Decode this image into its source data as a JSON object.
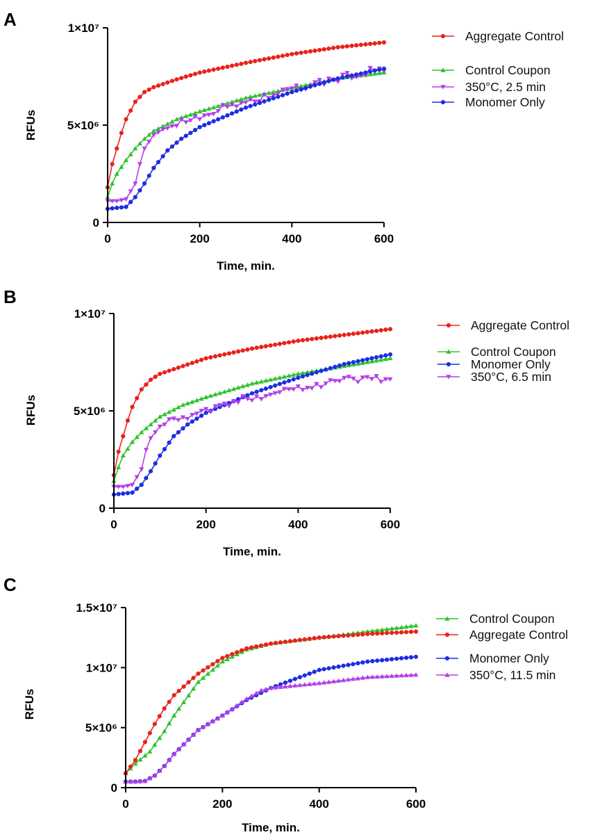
{
  "chart_data": [
    {
      "panel": "A",
      "type": "line",
      "xlabel": "Time, min.",
      "ylabel": "RFUs",
      "xlim": [
        0,
        600
      ],
      "ylim": [
        0,
        10000000
      ],
      "xticks": [
        0,
        200,
        400,
        600
      ],
      "xtick_labels": [
        "0",
        "200",
        "400",
        "600"
      ],
      "yticks": [
        0,
        5000000,
        10000000
      ],
      "ytick_labels": [
        "0",
        "5×10⁶",
        "1×10⁷"
      ],
      "interval_min": 10,
      "series": [
        {
          "name": "Aggregate Control",
          "color": "#e8231c",
          "marker": "circle",
          "anchors": [
            [
              0,
              1800000
            ],
            [
              10,
              3000000
            ],
            [
              20,
              3800000
            ],
            [
              30,
              4600000
            ],
            [
              40,
              5300000
            ],
            [
              60,
              6200000
            ],
            [
              80,
              6700000
            ],
            [
              100,
              6950000
            ],
            [
              150,
              7350000
            ],
            [
              200,
              7700000
            ],
            [
              300,
              8200000
            ],
            [
              400,
              8650000
            ],
            [
              500,
              9000000
            ],
            [
              600,
              9250000
            ]
          ]
        },
        {
          "name": "Control Coupon",
          "color": "#2ec32e",
          "marker": "triangle-up",
          "anchors": [
            [
              0,
              1300000
            ],
            [
              10,
              2000000
            ],
            [
              20,
              2500000
            ],
            [
              40,
              3200000
            ],
            [
              60,
              3800000
            ],
            [
              80,
              4300000
            ],
            [
              100,
              4700000
            ],
            [
              150,
              5300000
            ],
            [
              200,
              5700000
            ],
            [
              300,
              6400000
            ],
            [
              400,
              6900000
            ],
            [
              500,
              7400000
            ],
            [
              600,
              7700000
            ]
          ]
        },
        {
          "name": "350°C, 2.5 min",
          "color": "#b23fe8",
          "marker": "triangle-down",
          "anchors": [
            [
              0,
              1100000
            ],
            [
              20,
              1100000
            ],
            [
              40,
              1200000
            ],
            [
              60,
              2000000
            ],
            [
              70,
              3000000
            ],
            [
              80,
              3800000
            ],
            [
              100,
              4500000
            ],
            [
              130,
              4900000
            ],
            [
              200,
              5500000
            ],
            [
              300,
              6200000
            ],
            [
              400,
              6800000
            ],
            [
              500,
              7400000
            ],
            [
              600,
              7900000
            ]
          ],
          "noise": 200000
        },
        {
          "name": "Monomer Only",
          "color": "#1f2de0",
          "marker": "circle",
          "anchors": [
            [
              0,
              700000
            ],
            [
              20,
              750000
            ],
            [
              40,
              800000
            ],
            [
              60,
              1300000
            ],
            [
              80,
              2000000
            ],
            [
              100,
              2800000
            ],
            [
              130,
              3700000
            ],
            [
              160,
              4300000
            ],
            [
              200,
              4900000
            ],
            [
              300,
              5900000
            ],
            [
              400,
              6700000
            ],
            [
              500,
              7400000
            ],
            [
              600,
              7900000
            ]
          ]
        }
      ]
    },
    {
      "panel": "B",
      "type": "line",
      "xlabel": "Time, min.",
      "ylabel": "RFUs",
      "xlim": [
        0,
        600
      ],
      "ylim": [
        0,
        10000000
      ],
      "xticks": [
        0,
        200,
        400,
        600
      ],
      "xtick_labels": [
        "0",
        "200",
        "400",
        "600"
      ],
      "yticks": [
        0,
        5000000,
        10000000
      ],
      "ytick_labels": [
        "0",
        "5×10⁶",
        "1×10⁷"
      ],
      "interval_min": 10,
      "series": [
        {
          "name": "Aggregate Control",
          "color": "#e8231c",
          "marker": "circle",
          "anchors": [
            [
              0,
              1700000
            ],
            [
              10,
              2900000
            ],
            [
              20,
              3700000
            ],
            [
              30,
              4500000
            ],
            [
              40,
              5200000
            ],
            [
              60,
              6100000
            ],
            [
              80,
              6600000
            ],
            [
              100,
              6900000
            ],
            [
              150,
              7300000
            ],
            [
              200,
              7700000
            ],
            [
              300,
              8200000
            ],
            [
              400,
              8600000
            ],
            [
              500,
              8900000
            ],
            [
              600,
              9200000
            ]
          ]
        },
        {
          "name": "Control Coupon",
          "color": "#2ec32e",
          "marker": "triangle-up",
          "anchors": [
            [
              0,
              1400000
            ],
            [
              10,
              2100000
            ],
            [
              20,
              2700000
            ],
            [
              40,
              3400000
            ],
            [
              60,
              3900000
            ],
            [
              80,
              4300000
            ],
            [
              100,
              4700000
            ],
            [
              150,
              5300000
            ],
            [
              200,
              5700000
            ],
            [
              300,
              6400000
            ],
            [
              400,
              6900000
            ],
            [
              500,
              7300000
            ],
            [
              600,
              7700000
            ]
          ]
        },
        {
          "name": "Monomer Only",
          "color": "#1f2de0",
          "marker": "circle",
          "anchors": [
            [
              0,
              700000
            ],
            [
              20,
              750000
            ],
            [
              40,
              800000
            ],
            [
              60,
              1200000
            ],
            [
              80,
              1900000
            ],
            [
              100,
              2700000
            ],
            [
              130,
              3700000
            ],
            [
              160,
              4300000
            ],
            [
              200,
              4900000
            ],
            [
              300,
              5900000
            ],
            [
              400,
              6700000
            ],
            [
              500,
              7400000
            ],
            [
              600,
              7900000
            ]
          ]
        },
        {
          "name": "350°C, 6.5 min",
          "color": "#b23fe8",
          "marker": "triangle-down",
          "anchors": [
            [
              0,
              1100000
            ],
            [
              20,
              1100000
            ],
            [
              40,
              1200000
            ],
            [
              60,
              2000000
            ],
            [
              70,
              3000000
            ],
            [
              80,
              3600000
            ],
            [
              100,
              4200000
            ],
            [
              150,
              4700000
            ],
            [
              200,
              5000000
            ],
            [
              300,
              5700000
            ],
            [
              400,
              6200000
            ],
            [
              500,
              6600000
            ],
            [
              600,
              6700000
            ]
          ],
          "noise": 200000
        }
      ]
    },
    {
      "panel": "C",
      "type": "line",
      "xlabel": "Time, min.",
      "ylabel": "RFUs",
      "xlim": [
        0,
        600
      ],
      "ylim": [
        0,
        15000000
      ],
      "xticks": [
        0,
        200,
        400,
        600
      ],
      "xtick_labels": [
        "0",
        "200",
        "400",
        "600"
      ],
      "yticks": [
        0,
        5000000,
        10000000,
        15000000
      ],
      "ytick_labels": [
        "0",
        "5×10⁶",
        "1×10⁷",
        "1.5×10⁷"
      ],
      "interval_min": 10,
      "series": [
        {
          "name": "Control Coupon",
          "color": "#2ec32e",
          "marker": "triangle-up",
          "anchors": [
            [
              0,
              1200000
            ],
            [
              20,
              2000000
            ],
            [
              50,
              3000000
            ],
            [
              80,
              4700000
            ],
            [
              100,
              6000000
            ],
            [
              150,
              8800000
            ],
            [
              200,
              10500000
            ],
            [
              250,
              11500000
            ],
            [
              300,
              12000000
            ],
            [
              400,
              12500000
            ],
            [
              500,
              13000000
            ],
            [
              600,
              13500000
            ]
          ]
        },
        {
          "name": "Aggregate Control",
          "color": "#e8231c",
          "marker": "circle",
          "anchors": [
            [
              0,
              1200000
            ],
            [
              20,
              2300000
            ],
            [
              40,
              3800000
            ],
            [
              60,
              5300000
            ],
            [
              80,
              6600000
            ],
            [
              100,
              7700000
            ],
            [
              150,
              9500000
            ],
            [
              200,
              10800000
            ],
            [
              250,
              11600000
            ],
            [
              300,
              12000000
            ],
            [
              400,
              12500000
            ],
            [
              500,
              12800000
            ],
            [
              600,
              13000000
            ]
          ]
        },
        {
          "name": "Monomer Only",
          "color": "#1f2de0",
          "marker": "circle",
          "anchors": [
            [
              0,
              500000
            ],
            [
              20,
              500000
            ],
            [
              40,
              550000
            ],
            [
              60,
              1000000
            ],
            [
              80,
              1800000
            ],
            [
              100,
              2800000
            ],
            [
              150,
              4800000
            ],
            [
              200,
              6000000
            ],
            [
              250,
              7300000
            ],
            [
              300,
              8300000
            ],
            [
              400,
              9800000
            ],
            [
              500,
              10500000
            ],
            [
              600,
              10900000
            ]
          ]
        },
        {
          "name": "350°C, 11.5 min",
          "color": "#b23fe8",
          "marker": "triangle-up",
          "anchors": [
            [
              0,
              500000
            ],
            [
              20,
              500000
            ],
            [
              40,
              550000
            ],
            [
              60,
              1000000
            ],
            [
              80,
              1800000
            ],
            [
              100,
              2800000
            ],
            [
              150,
              4800000
            ],
            [
              200,
              6000000
            ],
            [
              250,
              7400000
            ],
            [
              280,
              8100000
            ],
            [
              300,
              8300000
            ],
            [
              400,
              8700000
            ],
            [
              500,
              9200000
            ],
            [
              600,
              9400000
            ]
          ]
        }
      ]
    }
  ]
}
